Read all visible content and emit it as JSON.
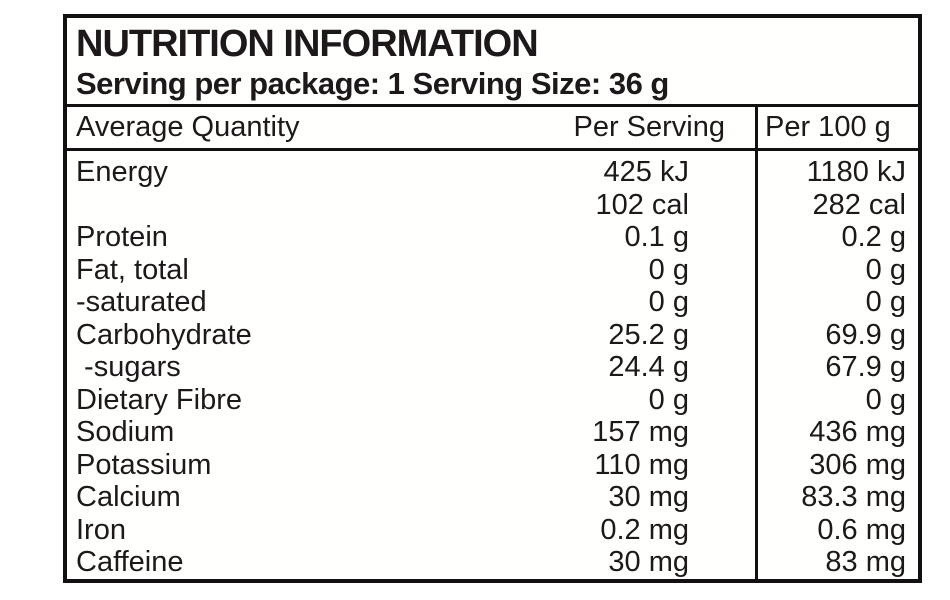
{
  "label": {
    "title": "NUTRITION INFORMATION",
    "subtitle": "Serving per package: 1 Serving Size: 36 g",
    "columns": [
      "Average Quantity",
      "Per Serving",
      "Per 100 g"
    ],
    "rows": [
      {
        "name": "Energy",
        "per_serving": "425 kJ",
        "per_100g": "1180 kJ"
      },
      {
        "name": "",
        "per_serving": "102 cal",
        "per_100g": "282 cal"
      },
      {
        "name": "Protein",
        "per_serving": "0.1 g",
        "per_100g": "0.2 g"
      },
      {
        "name": "Fat, total",
        "per_serving": "0 g",
        "per_100g": "0 g"
      },
      {
        "name": "-saturated",
        "per_serving": "0 g",
        "per_100g": "0 g"
      },
      {
        "name": "Carbohydrate",
        "per_serving": "25.2 g",
        "per_100g": "69.9 g"
      },
      {
        "name": " -sugars",
        "per_serving": "24.4 g",
        "per_100g": "67.9 g"
      },
      {
        "name": "Dietary Fibre",
        "per_serving": "0 g",
        "per_100g": "0 g"
      },
      {
        "name": "Sodium",
        "per_serving": "157 mg",
        "per_100g": "436 mg"
      },
      {
        "name": "Potassium",
        "per_serving": "110 mg",
        "per_100g": "306 mg"
      },
      {
        "name": "Calcium",
        "per_serving": "30 mg",
        "per_100g": "83.3 mg"
      },
      {
        "name": "Iron",
        "per_serving": "0.2 mg",
        "per_100g": "0.6 mg"
      },
      {
        "name": "Caffeine",
        "per_serving": "30 mg",
        "per_100g": "83 mg"
      }
    ],
    "colors": {
      "border": "#131011",
      "text": "#1d191a",
      "background": "#ffffff"
    }
  }
}
